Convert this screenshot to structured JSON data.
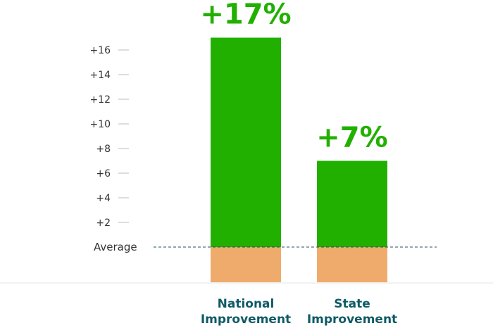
{
  "chart_data": {
    "type": "bar",
    "categories": [
      [
        "National",
        "Improvement"
      ],
      [
        "State",
        "Improvement"
      ]
    ],
    "values": [
      17,
      7
    ],
    "value_labels": [
      "+17%",
      "+7%"
    ],
    "yticks": [
      "+16",
      "+14",
      "+12",
      "+10",
      "+8",
      "+6",
      "+4",
      "+2"
    ],
    "ytick_values": [
      16,
      14,
      12,
      10,
      8,
      6,
      4,
      2
    ],
    "baseline_label": "Average",
    "ylim": [
      0,
      17
    ],
    "colors": {
      "bar": "#22b000",
      "below_average": "#eeab6b",
      "label": "#22b000",
      "category_text": "#0f5a66",
      "baseline": "#1f4f5a",
      "tick": "#bbbbbb",
      "bottom_rule": "#e4e4e4"
    }
  }
}
